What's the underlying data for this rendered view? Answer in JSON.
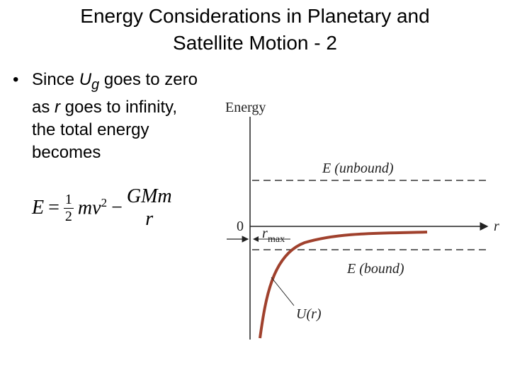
{
  "title": "Energy Considerations in Planetary and Satellite Motion - 2",
  "bullet": {
    "parts": [
      "Since ",
      "U",
      "g",
      " goes to zero as ",
      "r",
      " goes to infinity, the total energy becomes"
    ]
  },
  "formula": {
    "lhs": "E",
    "eq": "=",
    "num1": "1",
    "den1": "2",
    "term": "mv",
    "exp": "2",
    "minus": "−",
    "num2": "GMm",
    "den2": "r"
  },
  "diagram": {
    "y_label": "Energy",
    "unbound": "E (unbound)",
    "zero": "0",
    "x_label": "r",
    "rmax": "r",
    "rmax_sub": "max",
    "bound": "E (bound)",
    "curve": "U(r)"
  }
}
